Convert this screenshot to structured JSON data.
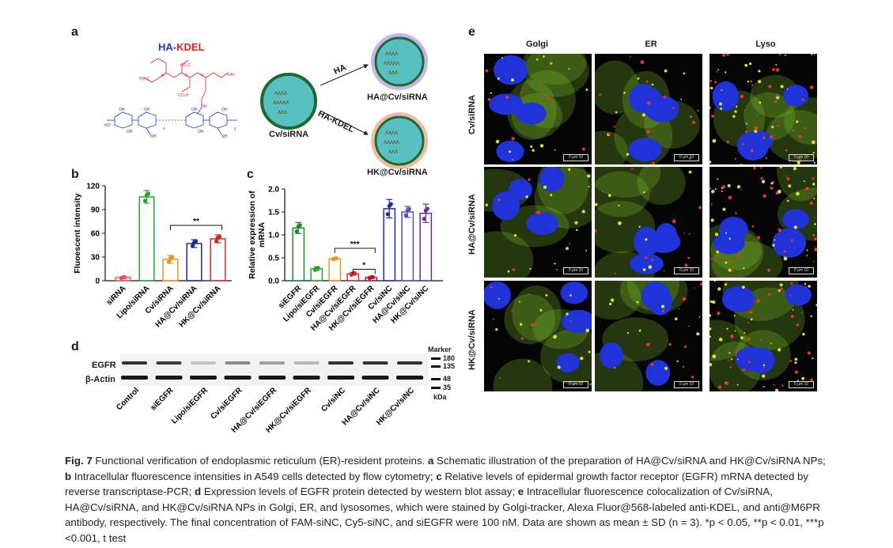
{
  "panels": {
    "a": "a",
    "b": "b",
    "c": "c",
    "d": "d",
    "e": "e"
  },
  "panel_a": {
    "title_ha": "HA",
    "title_dash": "-",
    "title_kdel": "KDEL",
    "center_label": "Cv/siRNA",
    "arrow_top": "HA",
    "arrow_bottom": "HA-KDEL",
    "np_top": "HA@Cv/siRNA",
    "np_bottom": "HK@Cv/siRNA"
  },
  "chart_data": [
    {
      "type": "bar",
      "panel": "b",
      "ylabel": "Fluoescent intensity",
      "ylim": [
        0,
        120
      ],
      "yticks": [
        0,
        30,
        60,
        90,
        120
      ],
      "categories": [
        "siRNA",
        "Lipo/siRNA",
        "Cv/siRNA",
        "HA@Cv/siRNA",
        "HK@Cv/siRNA"
      ],
      "values": [
        4,
        106,
        27,
        47,
        53
      ],
      "errors": [
        1,
        8,
        5,
        5,
        5
      ],
      "colors": [
        "#e8505b",
        "#2ca02c",
        "#f0922b",
        "#1f2a9c",
        "#d62728"
      ],
      "significance": [
        {
          "label": "**",
          "from": 2,
          "to": 4
        }
      ]
    },
    {
      "type": "bar",
      "panel": "c",
      "ylabel": "Relative expression of mRNA",
      "ylim": [
        0,
        2.0
      ],
      "yticks": [
        "0.0",
        "0.5",
        "1.0",
        "1.5",
        "2.0"
      ],
      "categories": [
        "siEGFR",
        "Lipo/siEGFR",
        "Cv/siEGFR",
        "HA@Cv/siEGFR",
        "HK@Cv/siEGFR",
        "Cv/siNC",
        "HA@Cv/siNC",
        "HK@Cv/siNC"
      ],
      "values": [
        1.15,
        0.26,
        0.48,
        0.15,
        0.07,
        1.57,
        1.5,
        1.47
      ],
      "errors": [
        0.12,
        0.04,
        0.02,
        0.03,
        0.02,
        0.2,
        0.12,
        0.2
      ],
      "colors": [
        "#1f8a2e",
        "#2ca02c",
        "#f0922b",
        "#d62728",
        "#b2182b",
        "#1f2a9c",
        "#5a4ec0",
        "#6a2c91"
      ],
      "significance": [
        {
          "label": "***",
          "from": 2,
          "to": 4
        },
        {
          "label": "*",
          "from": 3,
          "to": 4
        }
      ]
    }
  ],
  "panel_d": {
    "row_labels": [
      "EGFR",
      "β-Actin"
    ],
    "marker_title": "Marker",
    "markers": [
      "180",
      "135",
      "48",
      "35"
    ],
    "unit": "kDa",
    "lanes": [
      "Control",
      "siEGFR",
      "Lipo/siEGFR",
      "Cv/siEGFR",
      "HA@Cv/siEGFR",
      "HK@Cv/siEGFR",
      "Cv/siNC",
      "HA@Cv/siNC",
      "HK@Cv/siNC"
    ],
    "egfr_intensity": [
      0.85,
      0.8,
      0.2,
      0.45,
      0.35,
      0.25,
      0.85,
      0.85,
      0.85
    ],
    "actin_intensity": [
      0.95,
      0.95,
      0.95,
      0.95,
      0.95,
      0.95,
      0.95,
      0.95,
      0.95
    ]
  },
  "panel_e": {
    "columns": [
      "Golgi",
      "ER",
      "Lyso"
    ],
    "rows": [
      "Cv/siRNA",
      "HA@Cv/siRNA",
      "HK@Cv/siRNA"
    ],
    "scale_text": "0    μm   10"
  },
  "caption": {
    "fig": "Fig. 7",
    "t1": " Functional verification of endoplasmic reticulum (ER)-resident proteins. ",
    "a": "a",
    "t2": " Schematic illustration of the preparation of HA@Cv/siRNA and HK@Cv/siRNA NPs; ",
    "b": "b",
    "t3": " Intracellular fluorescence intensities in A549 cells detected by flow cytometry; ",
    "c": "c",
    "t4": " Relative levels of epidermal growth factor receptor (EGFR) mRNA detected by reverse transcriptase-PCR; ",
    "d": "d",
    "t5": " Expression levels of EGFR protein detected by western blot assay; ",
    "e": "e",
    "t6": " Intracellular fluorescence colocalization of Cv/siRNA, HA@Cv/siRNA, and HK@Cv/siRNA NPs in Golgi, ER, and lysosomes, which were stained by Golgi-tracker, Alexa Fluor@568-labeled anti-KDEL, and anti@M6PR antibody, respectively. The final concentration of FAM-siNC, Cy5-siNC, and siEGFR were 100 nM. Data are shown as mean ± SD (n = 3). *p < 0.05, **p < 0.01, ***p <0.001, t test"
  },
  "colors": {
    "micro_green": "#7fbf2a",
    "micro_blue": "#1f33d9",
    "micro_red": "#e53a1f",
    "np_core": "#58c0c0"
  }
}
